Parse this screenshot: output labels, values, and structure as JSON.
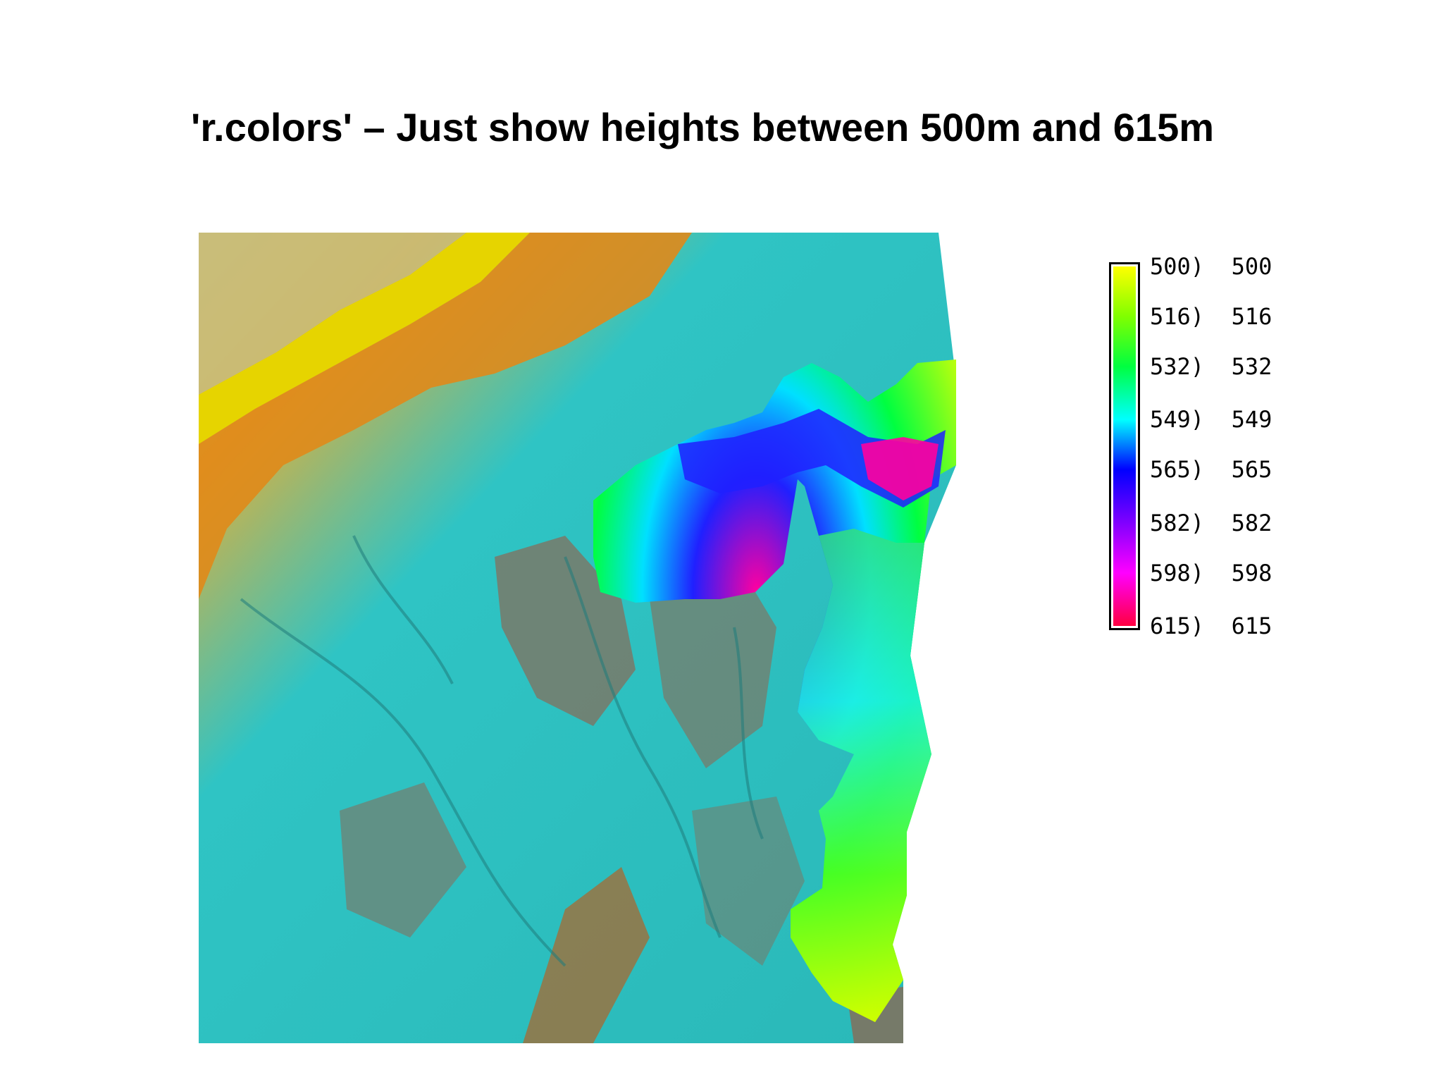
{
  "title": "'r.colors' – Just show heights between 500m and 615m",
  "map": {
    "icon": "elevation-shaded-relief-map",
    "colors": {
      "out_of_range_low": "#6fa8a8",
      "shade_brown": "#8a6a55",
      "ridge_orange": "#e08a1a",
      "ridge_yellow": "#e8d800",
      "valley_cyan": "#22c8c8",
      "plain_khaki": "#c8bc7a"
    }
  },
  "legend": {
    "entries": [
      {
        "label": "500)  500",
        "value": 500,
        "color": "#ffff00"
      },
      {
        "label": "516)  516",
        "value": 516,
        "color": "#80ff00"
      },
      {
        "label": "532)  532",
        "value": 532,
        "color": "#00ff40"
      },
      {
        "label": "549)  549",
        "value": 549,
        "color": "#00ffff"
      },
      {
        "label": "565)  565",
        "value": 565,
        "color": "#0000ff"
      },
      {
        "label": "582)  582",
        "value": 582,
        "color": "#8000ff"
      },
      {
        "label": "598)  598",
        "value": 598,
        "color": "#ff00ff"
      },
      {
        "label": "615)  615",
        "value": 615,
        "color": "#ff0040"
      }
    ],
    "range": [
      500,
      615
    ]
  }
}
